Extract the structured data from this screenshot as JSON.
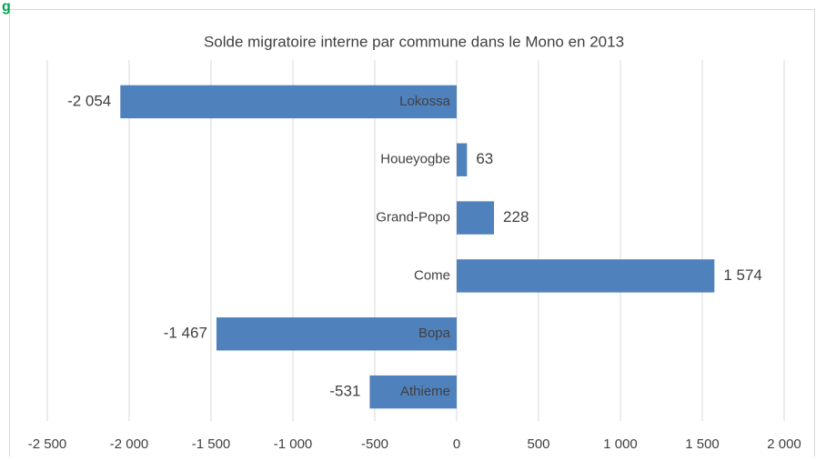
{
  "figure_label": "g",
  "chart_data": {
    "type": "hbar",
    "title": "Solde migratoire interne par commune dans le Mono en 2013",
    "categories": [
      "Lokossa",
      "Houeyogbe",
      "Grand-Popo",
      "Come",
      "Bopa",
      "Athieme"
    ],
    "values": [
      -2054,
      63,
      228,
      1574,
      -1467,
      -531
    ],
    "value_labels": [
      "-2 054",
      "63",
      "228",
      "1 574",
      "-1 467",
      "-531"
    ],
    "color": "#4f81bd",
    "xlim": [
      -2500,
      2000
    ],
    "xticks": [
      {
        "value": -2500,
        "label": "-2 500"
      },
      {
        "value": -2000,
        "label": "-2 000"
      },
      {
        "value": -1500,
        "label": "-1 500"
      },
      {
        "value": -1000,
        "label": "-1 000"
      },
      -500,
      0,
      500,
      {
        "value": 1000,
        "label": "1 000"
      },
      {
        "value": 1500,
        "label": "1 500"
      },
      {
        "value": 2000,
        "label": "2 000"
      }
    ],
    "grid": true
  }
}
